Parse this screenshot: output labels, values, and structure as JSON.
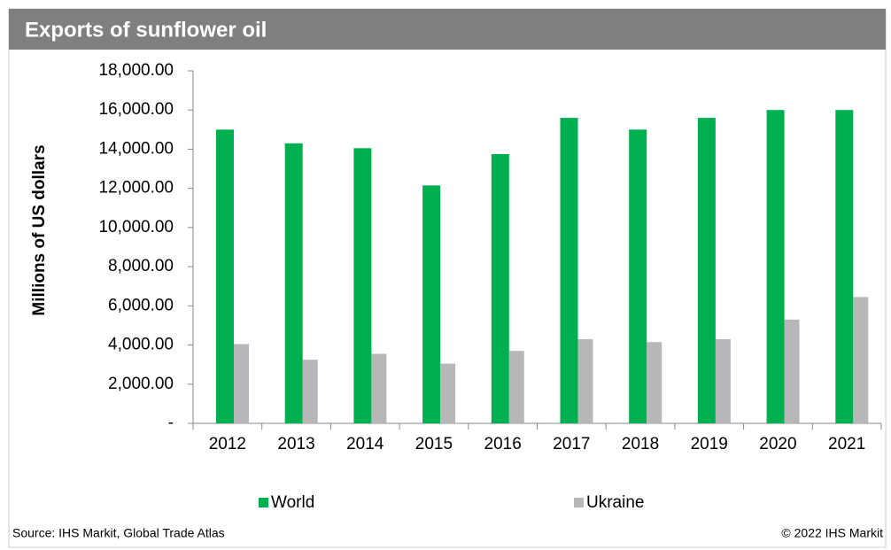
{
  "chart_data": {
    "type": "bar",
    "title": "Exports of sunflower oil",
    "y_label": "Millions of US dollars",
    "categories": [
      "2012",
      "2013",
      "2014",
      "2015",
      "2016",
      "2017",
      "2018",
      "2019",
      "2020",
      "2021"
    ],
    "series": [
      {
        "name": "World",
        "color": "#00b050",
        "values": [
          15000,
          14300,
          14050,
          12150,
          13750,
          15600,
          15000,
          15600,
          16000,
          16000
        ]
      },
      {
        "name": "Ukraine",
        "color": "#b7b7b9",
        "values": [
          4050,
          3250,
          3550,
          3050,
          3700,
          4300,
          4150,
          4300,
          5300,
          6450
        ]
      }
    ],
    "ylim": [
      0,
      18000
    ],
    "yticks": [
      {
        "value": 0,
        "label": "-"
      },
      {
        "value": 2000,
        "label": "2,000.00"
      },
      {
        "value": 4000,
        "label": "4,000.00"
      },
      {
        "value": 6000,
        "label": "6,000.00"
      },
      {
        "value": 8000,
        "label": "8,000.00"
      },
      {
        "value": 10000,
        "label": "10,000.00"
      },
      {
        "value": 12000,
        "label": "12,000.00"
      },
      {
        "value": 14000,
        "label": "14,000.00"
      },
      {
        "value": 16000,
        "label": "16,000.00"
      },
      {
        "value": 18000,
        "label": "18,000.00"
      }
    ],
    "legend": "bottom",
    "source": "Source: IHS Markit, Global Trade Atlas",
    "copyright": "© 2022 IHS Markit"
  }
}
